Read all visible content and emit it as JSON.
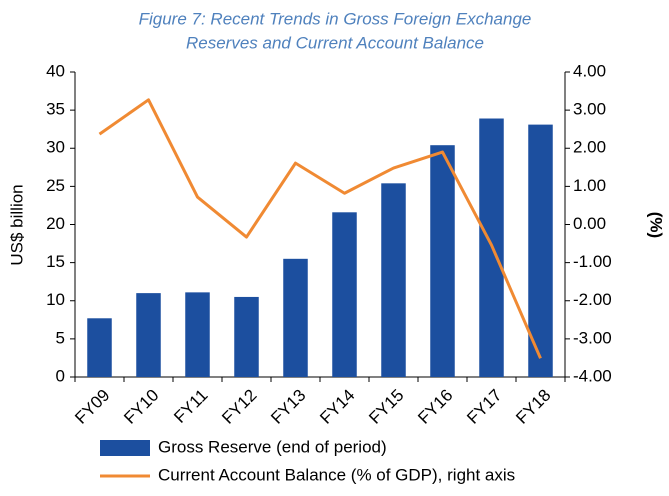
{
  "chart_data": {
    "type": "combo",
    "title": [
      "Figure 7: Recent Trends in Gross Foreign Exchange",
      "Reserves and Current Account Balance"
    ],
    "y_label": "US$ billion",
    "y2_label": "(%)",
    "categories": [
      "FY09",
      "FY10",
      "FY11",
      "FY12",
      "FY13",
      "FY14",
      "FY15",
      "FY16",
      "FY17",
      "FY18"
    ],
    "series": [
      {
        "name": "Gross Reserve (end of period)",
        "type": "bar",
        "color": "#1c4f9f",
        "values": [
          7.7,
          11.0,
          11.1,
          10.5,
          15.5,
          21.6,
          25.4,
          30.4,
          33.9,
          33.1
        ]
      },
      {
        "name": "Current Account Balance (% of GDP), right axis",
        "type": "line",
        "axis": "y2",
        "color": "#f08a33",
        "values": [
          2.37,
          3.27,
          0.72,
          -0.33,
          1.61,
          0.82,
          1.48,
          1.9,
          -0.54,
          -3.51
        ]
      }
    ],
    "ylim": [
      0,
      40
    ],
    "yticks": [
      0,
      5,
      10,
      15,
      20,
      25,
      30,
      35,
      40
    ],
    "y2lim": [
      -4,
      4
    ],
    "y2ticks": [
      {
        "value": -4,
        "label": "-4.00"
      },
      {
        "value": -3,
        "label": "-3.00"
      },
      {
        "value": -2,
        "label": "-2.00"
      },
      {
        "value": -1,
        "label": "-1.00"
      },
      {
        "value": 0,
        "label": "0.00"
      },
      {
        "value": 1,
        "label": "1.00"
      },
      {
        "value": 2,
        "label": "2.00"
      },
      {
        "value": 3,
        "label": "3.00"
      },
      {
        "value": 4,
        "label": "4.00"
      }
    ],
    "grid": false
  }
}
